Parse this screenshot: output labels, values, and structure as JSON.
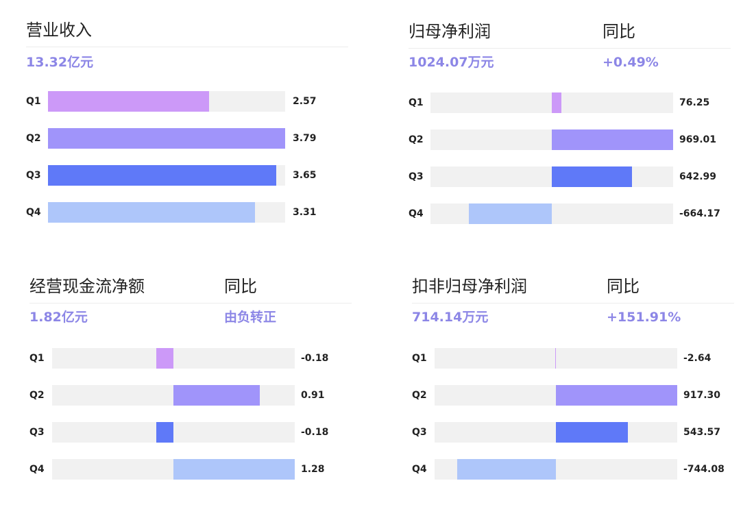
{
  "colors": {
    "accent": "#8c86e6",
    "track": "#f1f1f1",
    "q1": "#cc99f8",
    "q2": "#a094fa",
    "q3": "#5f79f8",
    "q4": "#aec6fa"
  },
  "chart_data": [
    {
      "type": "bar",
      "title": "营业收入",
      "total": "13.32亿元",
      "yoy_label": "",
      "yoy_value": "",
      "categories": [
        "Q1",
        "Q2",
        "Q3",
        "Q4"
      ],
      "values": [
        2.57,
        3.79,
        3.65,
        3.31
      ],
      "labels": [
        "2.57",
        "3.79",
        "3.65",
        "3.31"
      ],
      "xlim": [
        0,
        3.79
      ]
    },
    {
      "type": "bar",
      "title": "归母净利润",
      "total": "1024.07万元",
      "yoy_label": "同比",
      "yoy_value": "+0.49%",
      "categories": [
        "Q1",
        "Q2",
        "Q3",
        "Q4"
      ],
      "values": [
        76.25,
        969.01,
        642.99,
        -664.17
      ],
      "labels": [
        "76.25",
        "969.01",
        "642.99",
        "-664.17"
      ],
      "xlim": [
        -969.01,
        969.01
      ]
    },
    {
      "type": "bar",
      "title": "经营现金流净额",
      "total": "1.82亿元",
      "yoy_label": "同比",
      "yoy_value": "由负转正",
      "categories": [
        "Q1",
        "Q2",
        "Q3",
        "Q4"
      ],
      "values": [
        -0.18,
        0.91,
        -0.18,
        1.28
      ],
      "labels": [
        "-0.18",
        "0.91",
        "-0.18",
        "1.28"
      ],
      "xlim": [
        -1.28,
        1.28
      ]
    },
    {
      "type": "bar",
      "title": "扣非归母净利润",
      "total": "714.14万元",
      "yoy_label": "同比",
      "yoy_value": "+151.91%",
      "categories": [
        "Q1",
        "Q2",
        "Q3",
        "Q4"
      ],
      "values": [
        -2.64,
        917.3,
        543.57,
        -744.08
      ],
      "labels": [
        "-2.64",
        "917.30",
        "543.57",
        "-744.08"
      ],
      "xlim": [
        -917.3,
        917.3
      ]
    }
  ]
}
